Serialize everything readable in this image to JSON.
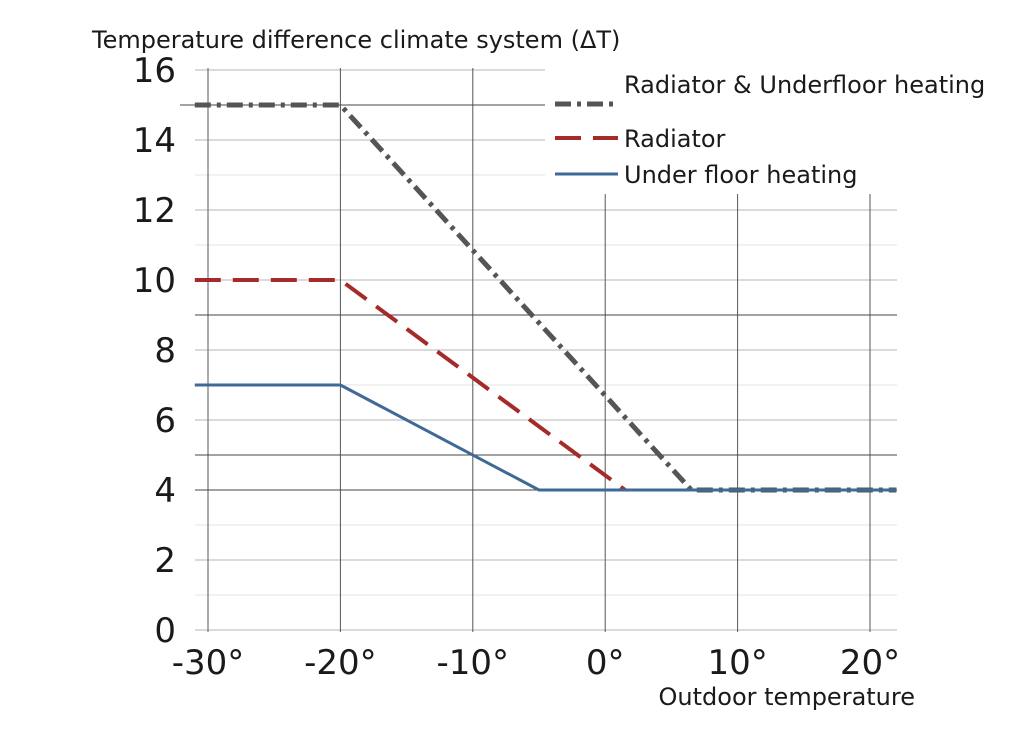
{
  "chart_data": {
    "type": "line",
    "title": "",
    "ylabel": "Temperature difference climate system (ΔT)",
    "xlabel": "Outdoor temperature",
    "xlim": [
      -31,
      22
    ],
    "ylim": [
      0,
      16
    ],
    "x_ticks": [
      -30,
      -20,
      -10,
      0,
      10,
      20
    ],
    "x_tick_labels": [
      "-30°",
      "-20°",
      "-10°",
      "0°",
      "10°",
      "20°"
    ],
    "y_ticks": [
      0,
      2,
      4,
      6,
      8,
      10,
      12,
      14,
      16
    ],
    "y_tick_labels": [
      "0",
      "2",
      "4",
      "6",
      "8",
      "10",
      "12",
      "14",
      "16"
    ],
    "grid": true,
    "legend_position": "top-right",
    "series": [
      {
        "name": "Radiator & Underfloor heating",
        "color": "#555555",
        "style": "dash-dot",
        "x": [
          -31,
          -20,
          6.5,
          22
        ],
        "y": [
          15,
          15,
          4,
          4
        ]
      },
      {
        "name": "Radiator",
        "color": "#a52a2a",
        "style": "dashed",
        "x": [
          -31,
          -20,
          1.5
        ],
        "y": [
          10,
          10,
          4
        ]
      },
      {
        "name": "Under floor heating",
        "color": "#3f6a95",
        "style": "solid",
        "x": [
          -31,
          -20,
          -5,
          22
        ],
        "y": [
          7,
          7,
          4,
          4
        ]
      }
    ]
  }
}
